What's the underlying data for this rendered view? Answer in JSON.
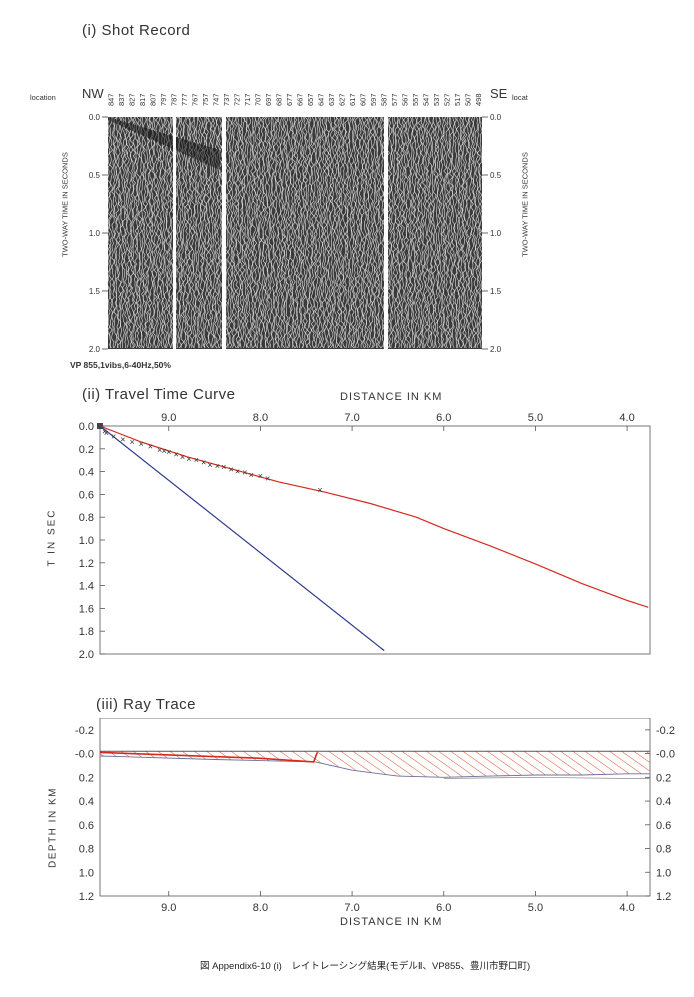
{
  "shot_record": {
    "title": "(i)  Shot Record",
    "left_dir": "NW",
    "right_dir": "SE",
    "left_loc_label": "location",
    "right_loc_label": "locat",
    "left_axis_label": "TWO-WAY TIME IN SECONDS",
    "right_axis_label": "TWO-WAY TIME IN SECONDS",
    "time_ticks": [
      "0.0",
      "0.5",
      "1.0",
      "1.5",
      "2.0"
    ],
    "trace_labels": [
      "847",
      "837",
      "827",
      "817",
      "807",
      "797",
      "787",
      "777",
      "767",
      "757",
      "747",
      "737",
      "727",
      "717",
      "707",
      "697",
      "687",
      "677",
      "667",
      "657",
      "647",
      "637",
      "627",
      "617",
      "607",
      "597",
      "587",
      "577",
      "567",
      "557",
      "547",
      "537",
      "527",
      "517",
      "507",
      "498"
    ],
    "source_note": "VP 855,1vibs,6-40Hz,50%"
  },
  "travel_time": {
    "title": "(ii)  Travel Time Curve",
    "top_axis_label": "DISTANCE IN KM",
    "ylabel": "T IN SEC"
  },
  "ray_trace": {
    "title": "(iii)  Ray Trace",
    "xlabel": "DISTANCE IN KM",
    "ylabel": "DEPTH IN KM"
  },
  "caption": "図 Appendix6-10 (i)　レイトレーシング結果(モデルⅡ、VP855、豊川市野口町)",
  "colors": {
    "refracted_line": "#d42a1e",
    "direct_line": "#2d3a8c",
    "hatch": "#d9502e",
    "axis": "#555555"
  },
  "chart_data": [
    {
      "type": "line",
      "title": "(ii)  Travel Time Curve",
      "xlabel": "DISTANCE IN KM",
      "ylabel": "T IN SEC",
      "xlim": [
        9.75,
        3.75
      ],
      "ylim": [
        2.0,
        0.0
      ],
      "x_ticks": [
        "9.0",
        "8.0",
        "7.0",
        "6.0",
        "5.0",
        "4.0"
      ],
      "y_ticks": [
        "0.0",
        "0.2",
        "0.4",
        "0.6",
        "0.8",
        "1.0",
        "1.2",
        "1.4",
        "1.6",
        "1.8",
        "2.0"
      ],
      "series": [
        {
          "x": [
            9.75,
            9.3,
            8.8,
            8.3,
            7.8,
            7.3,
            6.8,
            6.3,
            6.0,
            5.5,
            5.0,
            4.5,
            4.0,
            3.77
          ],
          "y": [
            0.0,
            0.14,
            0.27,
            0.38,
            0.49,
            0.58,
            0.68,
            0.8,
            0.9,
            1.05,
            1.21,
            1.38,
            1.53,
            1.59
          ]
        },
        {
          "x": [
            9.75,
            6.65
          ],
          "y": [
            0.0,
            1.97
          ]
        }
      ],
      "picks": {
        "x": [
          9.68,
          9.6,
          9.5,
          9.4,
          9.3,
          9.2,
          9.1,
          9.05,
          9.0,
          8.92,
          8.85,
          8.78,
          8.7,
          8.62,
          8.55,
          8.47,
          8.4,
          8.32,
          8.25,
          8.17,
          8.1,
          8.0,
          7.92,
          7.35
        ],
        "y": [
          0.06,
          0.09,
          0.12,
          0.14,
          0.16,
          0.18,
          0.21,
          0.22,
          0.23,
          0.25,
          0.27,
          0.29,
          0.3,
          0.32,
          0.34,
          0.35,
          0.36,
          0.38,
          0.4,
          0.41,
          0.43,
          0.44,
          0.46,
          0.56
        ]
      },
      "direct_pick": {
        "x": [
          9.7
        ],
        "y": [
          0.05
        ]
      }
    },
    {
      "type": "area",
      "title": "(iii)  Ray Trace",
      "xlabel": "DISTANCE IN KM",
      "ylabel": "DEPTH IN KM",
      "xlim": [
        9.75,
        3.75
      ],
      "ylim": [
        1.2,
        -0.3
      ],
      "x_ticks": [
        "9.0",
        "8.0",
        "7.0",
        "6.0",
        "5.0",
        "4.0"
      ],
      "y_ticks": [
        "-0.2",
        "-0.0",
        "0.2",
        "0.4",
        "0.6",
        "0.8",
        "1.0",
        "1.2"
      ],
      "surface": {
        "x": [
          9.75,
          3.75
        ],
        "y": [
          -0.02,
          -0.02
        ]
      },
      "layer_bottom": {
        "x": [
          9.75,
          8.5,
          7.4,
          7.0,
          6.5,
          6.0,
          5.5,
          5.0,
          4.5,
          4.0,
          3.75
        ],
        "y": [
          0.02,
          0.05,
          0.07,
          0.14,
          0.19,
          0.2,
          0.19,
          0.18,
          0.18,
          0.17,
          0.17
        ]
      },
      "lower_bottom": {
        "x": [
          6.0,
          5.0,
          4.0,
          3.75
        ],
        "y": [
          0.21,
          0.2,
          0.21,
          0.21
        ]
      },
      "ray_path": {
        "x": [
          9.75,
          8.0,
          7.42,
          7.38
        ],
        "y": [
          -0.01,
          0.04,
          0.07,
          -0.01
        ]
      }
    }
  ]
}
